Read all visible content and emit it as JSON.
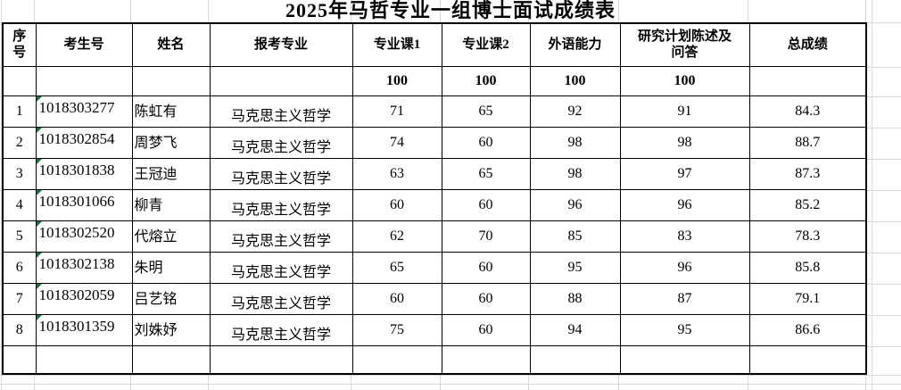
{
  "title": "2025年马哲专业一组博士面试成绩表",
  "table": {
    "headers": [
      "序\n号",
      "考生号",
      "姓名",
      "报考专业",
      "专业课1",
      "专业课2",
      "外语能力",
      "研究计划陈述及\n问答",
      "总成绩"
    ],
    "full_marks_row": [
      "",
      "",
      "",
      "",
      "100",
      "100",
      "100",
      "100",
      ""
    ],
    "rows": [
      [
        "1",
        "1018303277",
        "陈虹有",
        "马克思主义哲学",
        "71",
        "65",
        "92",
        "91",
        "84.3"
      ],
      [
        "2",
        "1018302854",
        "周梦飞",
        "马克思主义哲学",
        "74",
        "60",
        "98",
        "98",
        "88.7"
      ],
      [
        "3",
        "1018301838",
        "王冠迪",
        "马克思主义哲学",
        "63",
        "65",
        "98",
        "97",
        "87.3"
      ],
      [
        "4",
        "1018301066",
        "柳青",
        "马克思主义哲学",
        "60",
        "60",
        "96",
        "96",
        "85.2"
      ],
      [
        "5",
        "1018302520",
        "代熔立",
        "马克思主义哲学",
        "62",
        "70",
        "85",
        "83",
        "78.3"
      ],
      [
        "6",
        "1018302138",
        "朱明",
        "马克思主义哲学",
        "65",
        "60",
        "95",
        "96",
        "85.8"
      ],
      [
        "7",
        "1018302059",
        "吕艺铭",
        "马克思主义哲学",
        "60",
        "60",
        "88",
        "87",
        "79.1"
      ],
      [
        "8",
        "1018301359",
        "刘姝妤",
        "马克思主义哲学",
        "75",
        "60",
        "94",
        "95",
        "86.6"
      ]
    ],
    "empty_row": [
      "",
      "",
      "",
      "",
      "",
      "",
      "",
      "",
      ""
    ],
    "indicators": {
      "candidate_id_green_triangle": true
    }
  },
  "colors": {
    "text": "#000000",
    "table_border": "#000000",
    "sheet_gridline": "#dadada",
    "flag_green": "#1f7145",
    "background": "#ffffff"
  }
}
